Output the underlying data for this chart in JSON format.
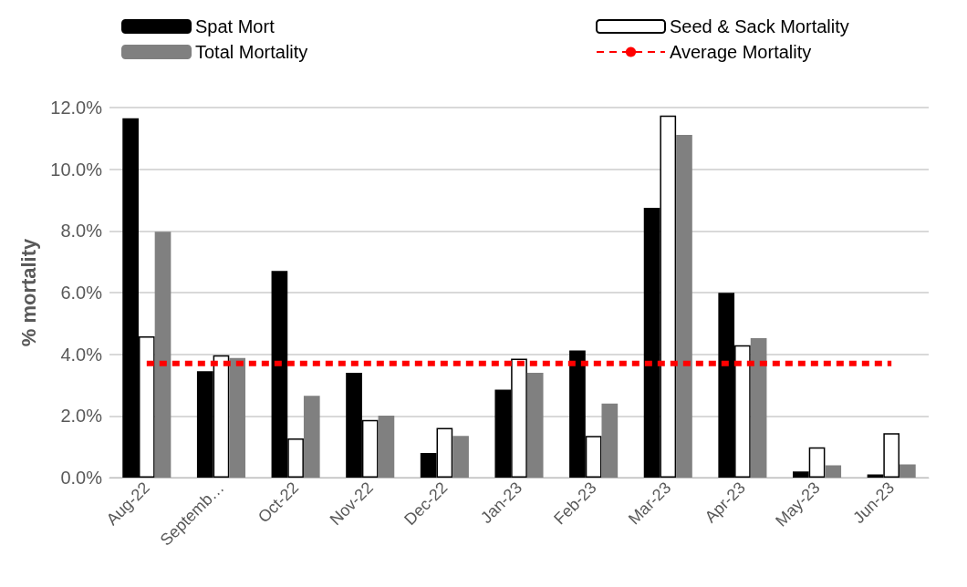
{
  "chart_data": {
    "type": "bar",
    "ylabel": "% mortality",
    "categories": [
      "Aug-22",
      "Septemb…",
      "Oct-22",
      "Nov-22",
      "Dec-22",
      "Jan-23",
      "Feb-23",
      "Mar-23",
      "Apr-23",
      "May-23",
      "Jun-23"
    ],
    "series": [
      {
        "name": "Spat Mort",
        "color": "#000000",
        "values": [
          11.65,
          3.45,
          6.7,
          3.4,
          0.8,
          2.85,
          4.12,
          8.75,
          5.99,
          0.2,
          0.1
        ]
      },
      {
        "name": "Seed & Sack Mortality",
        "color": "#ffffff",
        "values": [
          4.58,
          3.97,
          1.27,
          1.87,
          1.61,
          3.86,
          1.35,
          11.74,
          4.29,
          0.98,
          1.44
        ]
      },
      {
        "name": "Total Mortality",
        "color": "#808080",
        "values": [
          7.97,
          3.88,
          2.65,
          2.01,
          1.35,
          3.4,
          2.4,
          11.11,
          4.52,
          0.4,
          0.43
        ]
      },
      {
        "name": "Average Mortality",
        "type": "line",
        "color": "#ff0000",
        "line_style": "dashed",
        "marker": "none",
        "values": [
          3.7,
          3.7,
          3.7,
          3.7,
          3.7,
          3.7,
          3.7,
          3.7,
          3.7,
          3.7,
          3.7
        ]
      }
    ],
    "ylim": [
      0,
      12
    ],
    "yticks": [
      {
        "value": 0,
        "label": "0.0%"
      },
      {
        "value": 2,
        "label": "2.0%"
      },
      {
        "value": 4,
        "label": "4.0%"
      },
      {
        "value": 6,
        "label": "6.0%"
      },
      {
        "value": 8,
        "label": "8.0%"
      },
      {
        "value": 10,
        "label": "10.0%"
      },
      {
        "value": 12,
        "label": "12.0%"
      }
    ],
    "grid": "y",
    "legend": "top"
  }
}
